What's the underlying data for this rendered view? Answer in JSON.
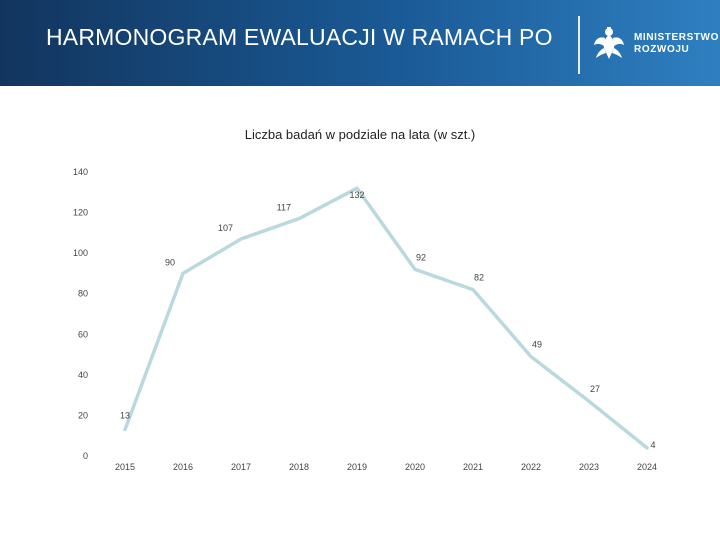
{
  "header": {
    "title": "HARMONOGRAM EWALUACJI W RAMACH PO",
    "logo_line1": "MINISTERSTWO",
    "logo_line2": "ROZWOJU"
  },
  "colors": {
    "header_start": "#12355e",
    "header_end": "#2f7fc0",
    "line": "#b9d9de"
  },
  "chart_data": {
    "type": "line",
    "title": "Liczba badań w podziale na lata (w szt.)",
    "categories": [
      "2015",
      "2016",
      "2017",
      "2018",
      "2019",
      "2020",
      "2021",
      "2022",
      "2023",
      "2024"
    ],
    "values": [
      13,
      90,
      107,
      117,
      132,
      92,
      82,
      49,
      27,
      4
    ],
    "data_labels": [
      "13",
      "90",
      "107",
      "117",
      "132",
      "92",
      "82",
      "49",
      "27",
      "4"
    ],
    "y_ticks": [
      "0",
      "20",
      "40",
      "60",
      "80",
      "100",
      "120",
      "140"
    ],
    "ylim": [
      0,
      140
    ],
    "xlabel": "",
    "ylabel": "",
    "grid": false,
    "legend": "none"
  }
}
